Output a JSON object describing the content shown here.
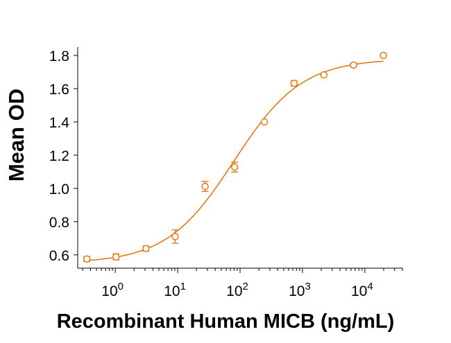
{
  "chart_data": {
    "type": "scatter",
    "title": "",
    "xlabel": "Recombinant Human MICB (ng/mL)",
    "ylabel": "Mean OD",
    "x_scale": "log",
    "xlim": [
      0.25,
      40000
    ],
    "ylim": [
      0.52,
      1.85
    ],
    "grid": false,
    "y_ticks": [
      "0.6",
      "0.8",
      "1.0",
      "1.2",
      "1.4",
      "1.6",
      "1.8"
    ],
    "x_ticks": [
      {
        "base": "10",
        "exp": "0"
      },
      {
        "base": "10",
        "exp": "1"
      },
      {
        "base": "10",
        "exp": "2"
      },
      {
        "base": "10",
        "exp": "3"
      },
      {
        "base": "10",
        "exp": "4"
      }
    ],
    "series": [
      {
        "color": "#E07B0F",
        "marker": "open-circle",
        "points": [
          {
            "x": 0.35,
            "y": 0.575,
            "err": 0.015
          },
          {
            "x": 1.03,
            "y": 0.588,
            "err": 0.018
          },
          {
            "x": 3.1,
            "y": 0.638,
            "err": 0.015
          },
          {
            "x": 9.1,
            "y": 0.71,
            "err": 0.04
          },
          {
            "x": 27.5,
            "y": 1.012,
            "err": 0.03
          },
          {
            "x": 82,
            "y": 1.128,
            "err": 0.03
          },
          {
            "x": 245,
            "y": 1.4,
            "err": 0.0
          },
          {
            "x": 735,
            "y": 1.632,
            "err": 0.015
          },
          {
            "x": 2200,
            "y": 1.683,
            "err": 0.0
          },
          {
            "x": 6600,
            "y": 1.742,
            "err": 0.01
          },
          {
            "x": 19800,
            "y": 1.8,
            "err": 0.0
          }
        ],
        "fit": {
          "bottom": 0.55,
          "top": 1.78,
          "ec50": 80,
          "hill": 0.8
        }
      }
    ]
  }
}
